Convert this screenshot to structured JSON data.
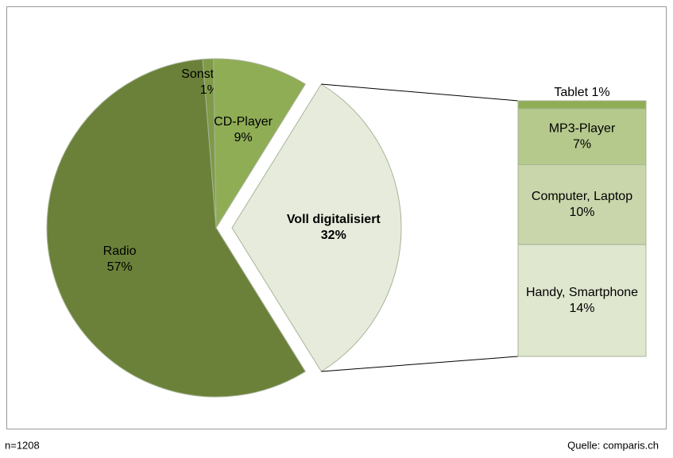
{
  "chart_data": {
    "type": "pie",
    "categories": [
      "Radio",
      "Sonstiges",
      "CD-Player",
      "Voll digitalisiert"
    ],
    "values": [
      57,
      1,
      9,
      32
    ],
    "value_labels": [
      "57%",
      "1%",
      "9%",
      "32%"
    ],
    "colors": [
      "#6b8139",
      "#7f9a48",
      "#8fad55",
      "#e6ebdc"
    ],
    "exploded": 3,
    "breakdown": {
      "type": "bar",
      "categories": [
        "Tablet",
        "MP3-Player",
        "Computer, Laptop",
        "Handy, Smartphone"
      ],
      "values": [
        1,
        7,
        10,
        14
      ],
      "value_labels": [
        "1%",
        "7%",
        "10%",
        "14%"
      ],
      "colors": [
        "#8fad55",
        "#b5c98d",
        "#c9d6ab",
        "#dfe7cf"
      ]
    },
    "note": "n=1208",
    "source": "Quelle: comparis.ch"
  }
}
